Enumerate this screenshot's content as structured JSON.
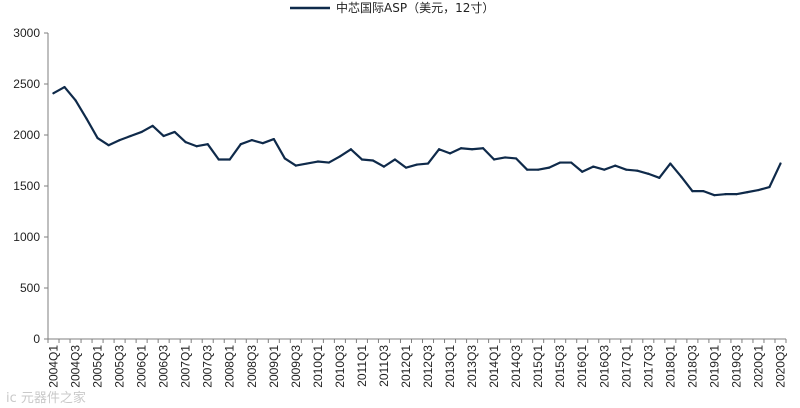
{
  "chart_data": {
    "type": "line",
    "title": "",
    "xlabel": "",
    "ylabel": "",
    "ylim": [
      0,
      3000
    ],
    "yticks": [
      0,
      500,
      1000,
      1500,
      2000,
      2500,
      3000
    ],
    "grid": false,
    "legend_position": "top-center",
    "color": "#0f2a4a",
    "x": [
      "2004Q1",
      "2004Q2",
      "2004Q3",
      "2004Q4",
      "2005Q1",
      "2005Q2",
      "2005Q3",
      "2005Q4",
      "2006Q1",
      "2006Q2",
      "2006Q3",
      "2006Q4",
      "2007Q1",
      "2007Q2",
      "2007Q3",
      "2007Q4",
      "2008Q1",
      "2008Q2",
      "2008Q3",
      "2008Q4",
      "2009Q1",
      "2009Q2",
      "2009Q3",
      "2009Q4",
      "2010Q1",
      "2010Q2",
      "2010Q3",
      "2010Q4",
      "2011Q1",
      "2011Q2",
      "2011Q3",
      "2011Q4",
      "2012Q1",
      "2012Q2",
      "2012Q3",
      "2012Q4",
      "2013Q1",
      "2013Q2",
      "2013Q3",
      "2013Q4",
      "2014Q1",
      "2014Q2",
      "2014Q3",
      "2014Q4",
      "2015Q1",
      "2015Q2",
      "2015Q3",
      "2015Q4",
      "2016Q1",
      "2016Q2",
      "2016Q3",
      "2016Q4",
      "2017Q1",
      "2017Q2",
      "2017Q3",
      "2017Q4",
      "2018Q1",
      "2018Q2",
      "2018Q3",
      "2018Q4",
      "2019Q1",
      "2019Q2",
      "2019Q3",
      "2019Q4",
      "2020Q1",
      "2020Q2",
      "2020Q3"
    ],
    "x_tick_labels": [
      "2004Q1",
      "2004Q3",
      "2005Q1",
      "2005Q3",
      "2006Q1",
      "2006Q3",
      "2007Q1",
      "2007Q3",
      "2008Q1",
      "2008Q3",
      "2009Q1",
      "2009Q3",
      "2010Q1",
      "2010Q3",
      "2011Q1",
      "2011Q3",
      "2012Q1",
      "2012Q3",
      "2013Q1",
      "2013Q3",
      "2014Q1",
      "2014Q3",
      "2015Q1",
      "2015Q3",
      "2016Q1",
      "2016Q3",
      "2017Q1",
      "2017Q3",
      "2018Q1",
      "2018Q3",
      "2019Q1",
      "2019Q3",
      "2020Q1",
      "2020Q3"
    ],
    "series": [
      {
        "name": "中芯国际ASP（美元，12寸）",
        "values": [
          2410,
          2470,
          2340,
          2160,
          1970,
          1900,
          1950,
          1990,
          2030,
          2090,
          1990,
          2030,
          1930,
          1890,
          1910,
          1760,
          1760,
          1910,
          1950,
          1920,
          1960,
          1770,
          1700,
          1720,
          1740,
          1730,
          1790,
          1860,
          1760,
          1750,
          1690,
          1760,
          1680,
          1710,
          1720,
          1860,
          1820,
          1870,
          1860,
          1870,
          1760,
          1780,
          1770,
          1660,
          1660,
          1680,
          1730,
          1730,
          1640,
          1690,
          1660,
          1700,
          1660,
          1650,
          1620,
          1580,
          1720,
          1590,
          1450,
          1450,
          1410,
          1420,
          1420,
          1440,
          1460,
          1490,
          1720
        ]
      }
    ]
  },
  "watermark": "ic 元器件之家"
}
